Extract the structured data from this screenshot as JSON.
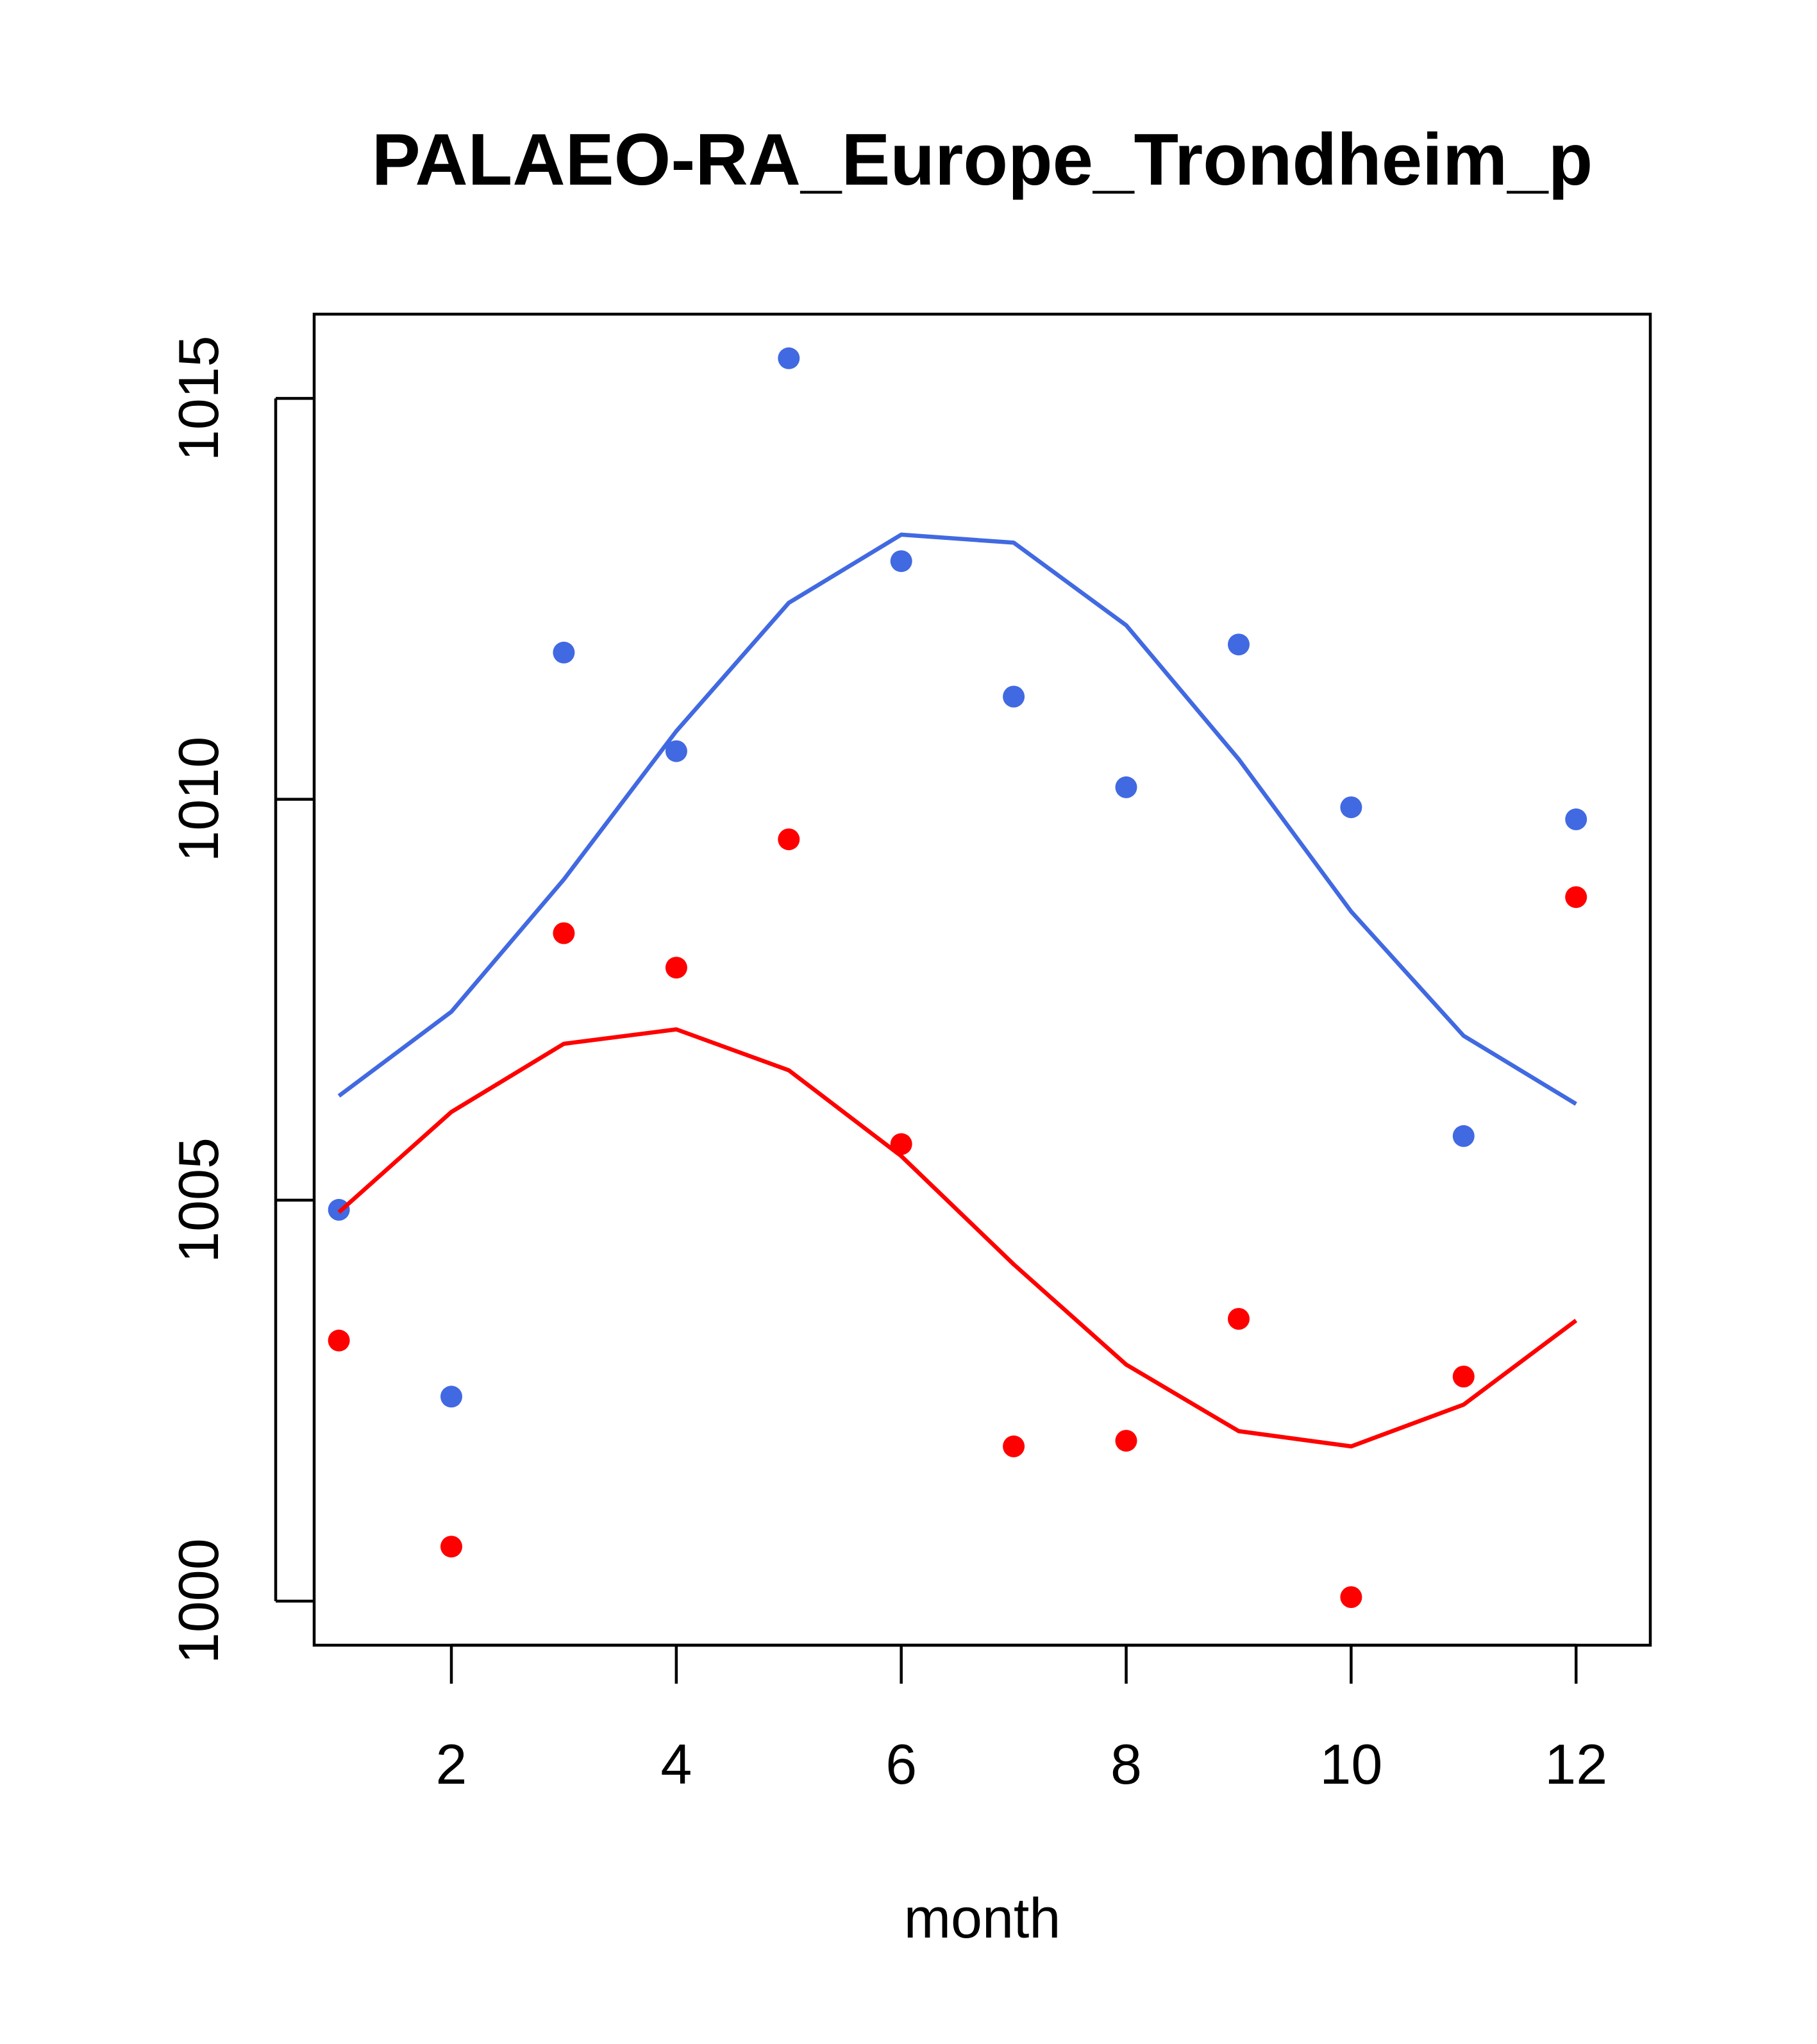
{
  "chart_data": {
    "type": "scatter",
    "title": "PALAEO-RA_Europe_Trondheim_p",
    "xlabel": "month",
    "ylabel": "",
    "xlim": [
      0.78,
      12.66
    ],
    "ylim": [
      999.45,
      1016.05
    ],
    "xticks": [
      2,
      4,
      6,
      8,
      10,
      12
    ],
    "yticks": [
      1000,
      1005,
      1010,
      1015
    ],
    "x": [
      1,
      2,
      3,
      4,
      5,
      6,
      7,
      8,
      9,
      10,
      11,
      12
    ],
    "series": [
      {
        "name": "blue points",
        "color": "#4169E1",
        "kind": "points",
        "values": [
          1004.88,
          1002.55,
          1011.83,
          1010.6,
          1015.5,
          1012.97,
          1011.28,
          1010.15,
          1011.93,
          1009.9,
          1005.8,
          1009.75
        ]
      },
      {
        "name": "blue line",
        "color": "#4169E1",
        "kind": "line",
        "values": [
          1006.3,
          1007.35,
          1009.0,
          1010.85,
          1012.45,
          1013.3,
          1013.2,
          1012.17,
          1010.5,
          1008.6,
          1007.05,
          1006.2
        ]
      },
      {
        "name": "red points",
        "color": "#FF0000",
        "kind": "points",
        "values": [
          1003.25,
          1000.68,
          1008.33,
          1007.9,
          1009.5,
          1005.7,
          1001.93,
          1002.0,
          1003.52,
          1000.05,
          1002.8,
          1008.78
        ]
      },
      {
        "name": "red line",
        "color": "#FF0000",
        "kind": "line",
        "values": [
          1004.85,
          1006.1,
          1006.95,
          1007.13,
          1006.62,
          1005.55,
          1004.2,
          1002.95,
          1002.12,
          1001.93,
          1002.45,
          1003.5
        ]
      }
    ]
  }
}
